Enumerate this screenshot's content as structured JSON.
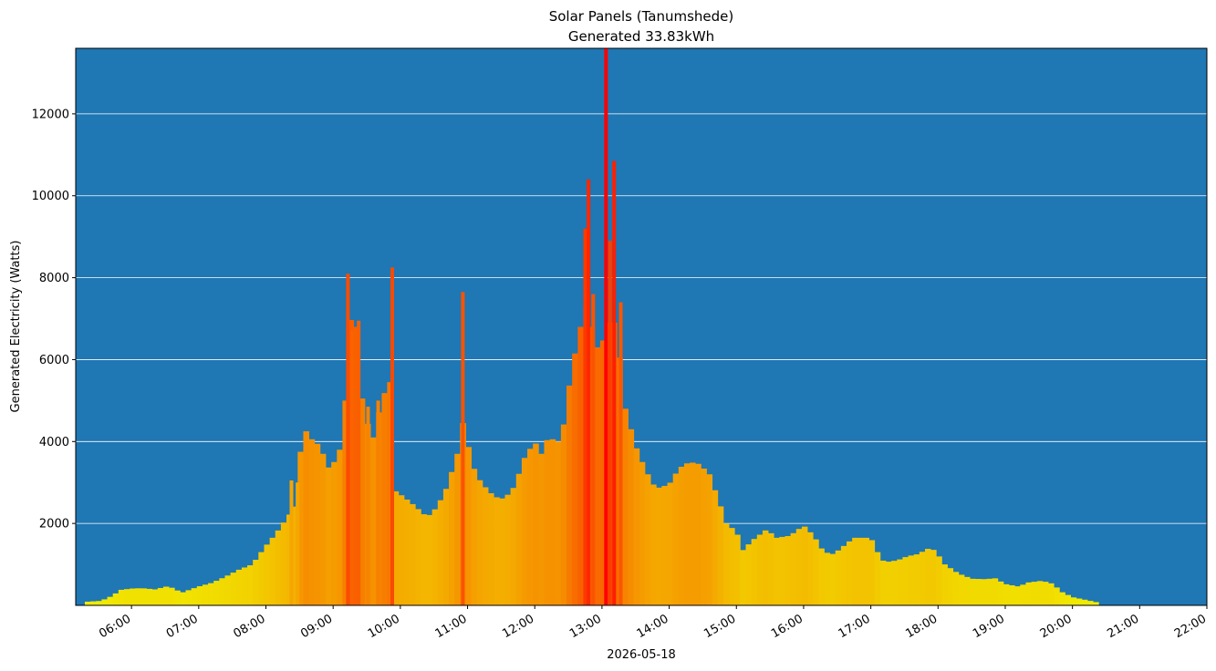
{
  "chart_data": {
    "type": "bar",
    "title": "Solar Panels (Tanumshede)",
    "subtitle": "Generated 33.83kWh",
    "xlabel": "2026-05-18",
    "ylabel": "Generated Electricity (Watts)",
    "ylim": [
      0,
      13600
    ],
    "xlim_hours": [
      5.17,
      22.0
    ],
    "y_ticks": [
      "2000",
      "4000",
      "6000",
      "8000",
      "10000",
      "12000"
    ],
    "x_ticks": [
      "06:00",
      "07:00",
      "08:00",
      "09:00",
      "10:00",
      "11:00",
      "12:00",
      "13:00",
      "14:00",
      "15:00",
      "16:00",
      "17:00",
      "18:00",
      "19:00",
      "20:00",
      "21:00",
      "22:00"
    ],
    "grid": "horizontal",
    "colors": {
      "background": "#1f77b4",
      "low": "#f0f000",
      "high": "#ff0000",
      "grid": "#ffffff"
    },
    "profile": [
      [
        5.35,
        90
      ],
      [
        5.55,
        110
      ],
      [
        5.7,
        220
      ],
      [
        5.85,
        380
      ],
      [
        6.0,
        410
      ],
      [
        6.15,
        420
      ],
      [
        6.35,
        390
      ],
      [
        6.55,
        470
      ],
      [
        6.75,
        310
      ],
      [
        7.0,
        460
      ],
      [
        7.2,
        550
      ],
      [
        7.4,
        700
      ],
      [
        7.6,
        870
      ],
      [
        7.8,
        1000
      ],
      [
        8.0,
        1450
      ],
      [
        8.15,
        1750
      ],
      [
        8.3,
        2100
      ],
      [
        8.45,
        2450
      ],
      [
        8.55,
        4400
      ],
      [
        8.65,
        4100
      ],
      [
        8.8,
        3900
      ],
      [
        8.95,
        3300
      ],
      [
        9.05,
        3600
      ],
      [
        9.15,
        4000
      ],
      [
        9.25,
        7000
      ],
      [
        9.35,
        6800
      ],
      [
        9.45,
        4700
      ],
      [
        9.6,
        4100
      ],
      [
        9.75,
        5200
      ],
      [
        9.85,
        5100
      ],
      [
        9.92,
        2800
      ],
      [
        10.05,
        2650
      ],
      [
        10.2,
        2450
      ],
      [
        10.4,
        2150
      ],
      [
        10.55,
        2400
      ],
      [
        10.7,
        2900
      ],
      [
        10.85,
        3700
      ],
      [
        10.95,
        4600
      ],
      [
        11.05,
        3500
      ],
      [
        11.2,
        3000
      ],
      [
        11.4,
        2650
      ],
      [
        11.55,
        2600
      ],
      [
        11.7,
        2900
      ],
      [
        11.85,
        3600
      ],
      [
        12.0,
        4000
      ],
      [
        12.1,
        3700
      ],
      [
        12.2,
        4100
      ],
      [
        12.35,
        4000
      ],
      [
        12.45,
        4500
      ],
      [
        12.55,
        5800
      ],
      [
        12.65,
        6500
      ],
      [
        12.75,
        7400
      ],
      [
        12.85,
        6800
      ],
      [
        12.95,
        6200
      ],
      [
        13.05,
        6600
      ],
      [
        13.15,
        7200
      ],
      [
        13.25,
        6300
      ],
      [
        13.35,
        4800
      ],
      [
        13.5,
        3900
      ],
      [
        13.65,
        3300
      ],
      [
        13.8,
        2850
      ],
      [
        14.0,
        2950
      ],
      [
        14.15,
        3350
      ],
      [
        14.3,
        3500
      ],
      [
        14.45,
        3450
      ],
      [
        14.6,
        3200
      ],
      [
        14.75,
        2500
      ],
      [
        14.85,
        2000
      ],
      [
        15.0,
        1800
      ],
      [
        15.1,
        1350
      ],
      [
        15.25,
        1600
      ],
      [
        15.45,
        1850
      ],
      [
        15.6,
        1650
      ],
      [
        15.8,
        1700
      ],
      [
        16.0,
        1950
      ],
      [
        16.15,
        1700
      ],
      [
        16.3,
        1300
      ],
      [
        16.45,
        1250
      ],
      [
        16.6,
        1450
      ],
      [
        16.75,
        1650
      ],
      [
        17.0,
        1650
      ],
      [
        17.1,
        1300
      ],
      [
        17.2,
        1050
      ],
      [
        17.4,
        1100
      ],
      [
        17.55,
        1200
      ],
      [
        17.7,
        1250
      ],
      [
        17.85,
        1380
      ],
      [
        17.95,
        1350
      ],
      [
        18.1,
        1000
      ],
      [
        18.3,
        780
      ],
      [
        18.5,
        650
      ],
      [
        18.7,
        640
      ],
      [
        18.85,
        660
      ],
      [
        19.0,
        520
      ],
      [
        19.2,
        460
      ],
      [
        19.35,
        560
      ],
      [
        19.55,
        600
      ],
      [
        19.7,
        530
      ],
      [
        19.85,
        320
      ],
      [
        20.0,
        200
      ],
      [
        20.15,
        150
      ],
      [
        20.35,
        80
      ]
    ],
    "spikes": [
      [
        8.38,
        3050
      ],
      [
        8.47,
        3000
      ],
      [
        9.22,
        8100
      ],
      [
        9.28,
        6700
      ],
      [
        9.38,
        6950
      ],
      [
        9.52,
        4850
      ],
      [
        9.67,
        5000
      ],
      [
        9.83,
        5450
      ],
      [
        9.88,
        8250
      ],
      [
        10.93,
        7650
      ],
      [
        12.75,
        9200
      ],
      [
        12.8,
        10400
      ],
      [
        12.87,
        7600
      ],
      [
        13.06,
        13600
      ],
      [
        13.12,
        8900
      ],
      [
        13.18,
        10850
      ],
      [
        13.28,
        7400
      ]
    ]
  }
}
